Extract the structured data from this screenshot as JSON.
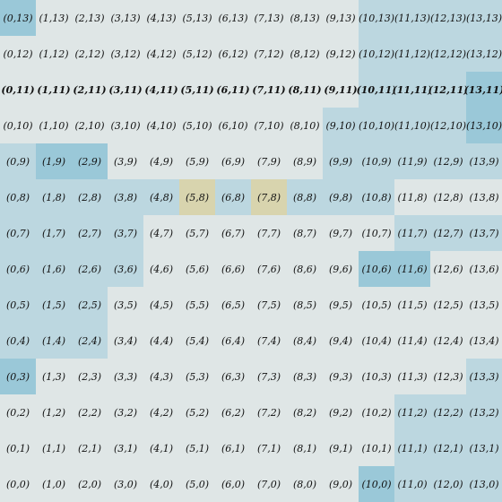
{
  "grid": {
    "columns": 14,
    "rows": 14
  },
  "colors": {
    "background": "#dfe6e6",
    "light": "#bcd7e0",
    "medium": "#aacfdc",
    "strong": "#9ac8d8",
    "highlight": "#d8d4ae"
  },
  "bold_row": 11,
  "highlight_cells": [
    "5,8",
    "7,8"
  ],
  "tinted_cells": {
    "0,13": "strong",
    "10,13": "light",
    "11,13": "light",
    "12,13": "light",
    "13,13": "light",
    "10,12": "light",
    "11,12": "light",
    "12,12": "light",
    "13,12": "light",
    "10,11": "light",
    "11,11": "light",
    "12,11": "light",
    "13,11": "strong",
    "9,10": "light",
    "10,10": "light",
    "11,10": "light",
    "12,10": "light",
    "13,10": "strong",
    "0,9": "light",
    "1,9": "strong",
    "2,9": "strong",
    "9,9": "light",
    "10,9": "light",
    "11,9": "light",
    "12,9": "light",
    "13,9": "light",
    "0,8": "light",
    "1,8": "light",
    "2,8": "light",
    "3,8": "light",
    "4,8": "light",
    "6,8": "light",
    "8,8": "light",
    "9,8": "light",
    "10,8": "light",
    "0,7": "light",
    "1,7": "light",
    "2,7": "light",
    "3,7": "light",
    "11,7": "light",
    "12,7": "light",
    "13,7": "light",
    "0,6": "light",
    "1,6": "light",
    "2,6": "light",
    "3,6": "light",
    "10,6": "strong",
    "11,6": "strong",
    "0,5": "light",
    "1,5": "light",
    "2,5": "light",
    "0,4": "light",
    "1,4": "light",
    "2,4": "light",
    "0,3": "strong",
    "13,3": "light",
    "11,2": "light",
    "12,2": "light",
    "13,2": "light",
    "11,1": "light",
    "12,1": "light",
    "13,1": "light",
    "10,0": "strong",
    "11,0": "light",
    "12,0": "light",
    "13,0": "light"
  },
  "cells": [
    [
      "(0,13)",
      "(1,13)",
      "(2,13)",
      "(3,13)",
      "(4,13)",
      "(5,13)",
      "(6,13)",
      "(7,13)",
      "(8,13)",
      "(9,13)",
      "(10,13)",
      "(11,13)",
      "(12,13)",
      "(13,13)"
    ],
    [
      "(0,12)",
      "(1,12)",
      "(2,12)",
      "(3,12)",
      "(4,12)",
      "(5,12)",
      "(6,12)",
      "(7,12)",
      "(8,12)",
      "(9,12)",
      "(10,12)",
      "(11,12)",
      "(12,12)",
      "(13,12)"
    ],
    [
      "(0,11)",
      "(1,11)",
      "(2,11)",
      "(3,11)",
      "(4,11)",
      "(5,11)",
      "(6,11)",
      "(7,11)",
      "(8,11)",
      "(9,11)",
      "(10,11)",
      "(11,11)",
      "(12,11)",
      "(13,11)"
    ],
    [
      "(0,10)",
      "(1,10)",
      "(2,10)",
      "(3,10)",
      "(4,10)",
      "(5,10)",
      "(6,10)",
      "(7,10)",
      "(8,10)",
      "(9,10)",
      "(10,10)",
      "(11,10)",
      "(12,10)",
      "(13,10)"
    ],
    [
      "(0,9)",
      "(1,9)",
      "(2,9)",
      "(3,9)",
      "(4,9)",
      "(5,9)",
      "(6,9)",
      "(7,9)",
      "(8,9)",
      "(9,9)",
      "(10,9)",
      "(11,9)",
      "(12,9)",
      "(13,9)"
    ],
    [
      "(0,8)",
      "(1,8)",
      "(2,8)",
      "(3,8)",
      "(4,8)",
      "(5,8)",
      "(6,8)",
      "(7,8)",
      "(8,8)",
      "(9,8)",
      "(10,8)",
      "(11,8)",
      "(12,8)",
      "(13,8)"
    ],
    [
      "(0,7)",
      "(1,7)",
      "(2,7)",
      "(3,7)",
      "(4,7)",
      "(5,7)",
      "(6,7)",
      "(7,7)",
      "(8,7)",
      "(9,7)",
      "(10,7)",
      "(11,7)",
      "(12,7)",
      "(13,7)"
    ],
    [
      "(0,6)",
      "(1,6)",
      "(2,6)",
      "(3,6)",
      "(4,6)",
      "(5,6)",
      "(6,6)",
      "(7,6)",
      "(8,6)",
      "(9,6)",
      "(10,6)",
      "(11,6)",
      "(12,6)",
      "(13,6)"
    ],
    [
      "(0,5)",
      "(1,5)",
      "(2,5)",
      "(3,5)",
      "(4,5)",
      "(5,5)",
      "(6,5)",
      "(7,5)",
      "(8,5)",
      "(9,5)",
      "(10,5)",
      "(11,5)",
      "(12,5)",
      "(13,5)"
    ],
    [
      "(0,4)",
      "(1,4)",
      "(2,4)",
      "(3,4)",
      "(4,4)",
      "(5,4)",
      "(6,4)",
      "(7,4)",
      "(8,4)",
      "(9,4)",
      "(10,4)",
      "(11,4)",
      "(12,4)",
      "(13,4)"
    ],
    [
      "(0,3)",
      "(1,3)",
      "(2,3)",
      "(3,3)",
      "(4,3)",
      "(5,3)",
      "(6,3)",
      "(7,3)",
      "(8,3)",
      "(9,3)",
      "(10,3)",
      "(11,3)",
      "(12,3)",
      "(13,3)"
    ],
    [
      "(0,2)",
      "(1,2)",
      "(2,2)",
      "(3,2)",
      "(4,2)",
      "(5,2)",
      "(6,2)",
      "(7,2)",
      "(8,2)",
      "(9,2)",
      "(10,2)",
      "(11,2)",
      "(12,2)",
      "(13,2)"
    ],
    [
      "(0,1)",
      "(1,1)",
      "(2,1)",
      "(3,1)",
      "(4,1)",
      "(5,1)",
      "(6,1)",
      "(7,1)",
      "(8,1)",
      "(9,1)",
      "(10,1)",
      "(11,1)",
      "(12,1)",
      "(13,1)"
    ],
    [
      "(0,0)",
      "(1,0)",
      "(2,0)",
      "(3,0)",
      "(4,0)",
      "(5,0)",
      "(6,0)",
      "(7,0)",
      "(8,0)",
      "(9,0)",
      "(10,0)",
      "(11,0)",
      "(12,0)",
      "(13,0)"
    ]
  ]
}
